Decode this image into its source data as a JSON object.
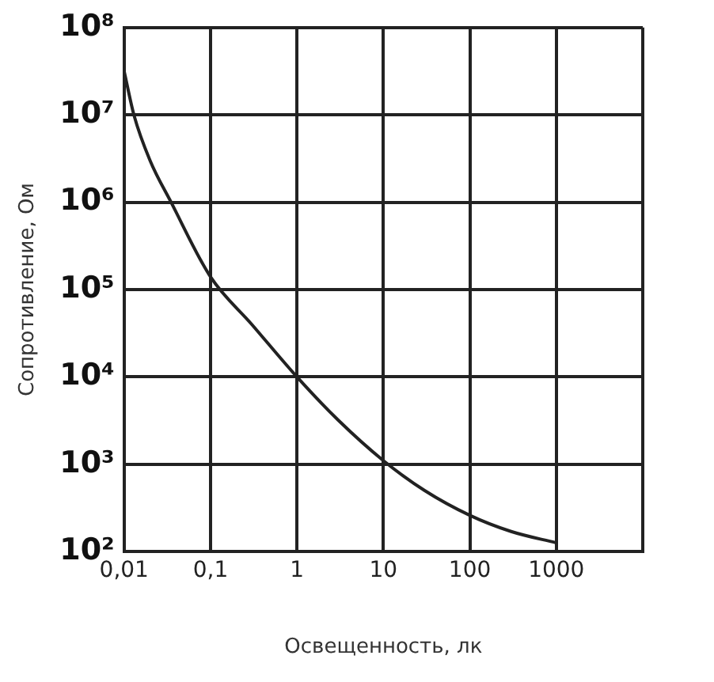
{
  "chart_data": {
    "type": "line",
    "xlabel": "Освещенность, лк",
    "ylabel": "Сопротивление, Ом",
    "log": "xy",
    "grid": true,
    "legend": false,
    "marker": "none",
    "line_style": "solid",
    "xlim": [
      0.01,
      10000
    ],
    "xticks": [
      {
        "value": 0.01,
        "label": "0,01"
      },
      {
        "value": 0.1,
        "label": "0,1"
      },
      1,
      10,
      100,
      1000,
      {
        "value": 10000,
        "label": null
      }
    ],
    "ylim": [
      100,
      100000000
    ],
    "yticks": [
      {
        "value": 100,
        "label": "10²"
      },
      {
        "value": 1000,
        "label": "10³"
      },
      {
        "value": 10000,
        "label": "10⁴"
      },
      {
        "value": 100000,
        "label": "10⁵"
      },
      {
        "value": 1000000,
        "label": "10⁶"
      },
      {
        "value": 10000000,
        "label": "10⁷"
      },
      {
        "value": 100000000,
        "label": "10⁸"
      }
    ],
    "x": [
      0.01,
      0.013,
      0.02,
      0.035,
      0.1,
      0.3,
      1,
      3,
      10,
      30,
      100,
      300,
      1000
    ],
    "series": [
      {
        "color": "#222222",
        "values": [
          32000000,
          10000000,
          3000000,
          1000000,
          140000,
          40000,
          10000,
          3200,
          1100,
          500,
          260,
          170,
          126
        ]
      }
    ]
  }
}
